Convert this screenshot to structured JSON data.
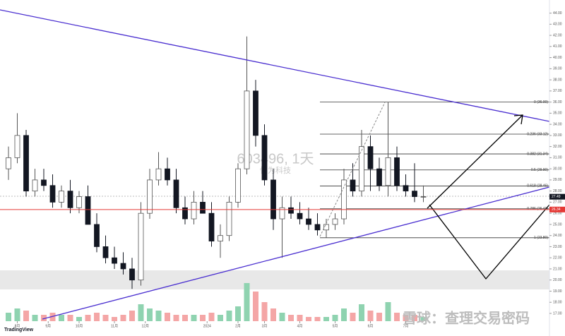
{
  "chart_data": {
    "type": "candlestick",
    "watermark": "603496, 1天",
    "watermark_sub": "恒为科技",
    "brand": "TradingView",
    "credit": "雪球：查理交易密码",
    "up_color": "#555555",
    "down_color": "#131722",
    "volume_up_color": "#8fd3b0",
    "volume_down_color": "#f4a6a6",
    "open": [
      30,
      31,
      33,
      28,
      29,
      28.5,
      27,
      28,
      26.5,
      27.5,
      25,
      23,
      22,
      21.5,
      21,
      20,
      26,
      29,
      30,
      29,
      26.5,
      25.5,
      27,
      26,
      23.5,
      24,
      27,
      30,
      37,
      33,
      29,
      25.5,
      26.5,
      26,
      25.5,
      25,
      24.5,
      25,
      25.5,
      29,
      28,
      32,
      30,
      28.5,
      31,
      28.5,
      28,
      27.5
    ],
    "high": [
      32,
      35,
      33.5,
      30,
      30,
      29.5,
      28.5,
      29,
      28,
      28.5,
      26,
      24,
      23,
      22.5,
      22,
      27,
      30,
      31.5,
      31,
      30,
      27.5,
      28,
      28,
      27,
      25,
      27.5,
      30.5,
      41.9,
      38,
      34,
      30,
      27.5,
      27.5,
      27,
      26.5,
      26,
      25.5,
      26,
      30,
      30.5,
      33.5,
      33,
      31,
      36,
      32,
      29.5,
      30.5,
      28.5
    ],
    "low": [
      29,
      30.5,
      27.5,
      27.5,
      28,
      26.5,
      26.5,
      26,
      26,
      25,
      22.5,
      21.5,
      21,
      20.5,
      19.2,
      19.5,
      25.5,
      28.5,
      28.5,
      26,
      25,
      25,
      26,
      23,
      22,
      23.5,
      26.5,
      29.5,
      32,
      28.5,
      24.5,
      22,
      25.5,
      25,
      24.5,
      24,
      23.8,
      24.5,
      25,
      27.5,
      27.5,
      28,
      28,
      27.5,
      28,
      27.5,
      27,
      27
    ],
    "close": [
      31,
      33,
      28,
      29,
      28.5,
      27,
      28,
      26.5,
      27.5,
      25,
      23,
      22,
      21.5,
      21,
      20,
      26,
      29,
      30,
      29,
      26.5,
      25.5,
      27,
      26,
      23.5,
      24,
      27,
      30,
      37,
      33,
      29,
      25.5,
      26.5,
      26,
      25.5,
      25,
      24.5,
      25,
      25.5,
      29,
      28,
      32,
      30,
      28.5,
      31,
      28.5,
      28,
      27.5,
      27.5
    ],
    "volume": [
      4,
      6,
      5,
      3,
      3,
      4,
      3,
      3,
      2,
      3,
      4,
      3,
      2,
      3,
      5,
      8,
      6,
      5,
      4,
      3,
      3,
      3,
      3,
      4,
      3,
      5,
      7,
      18,
      14,
      9,
      6,
      4,
      3,
      3,
      2,
      2,
      2,
      3,
      6,
      4,
      8,
      5,
      4,
      9,
      4,
      3,
      3,
      2
    ],
    "vlim": [
      0,
      20
    ],
    "ylim": [
      16.3,
      44.1
    ],
    "yticks": [
      {
        "value": 17,
        "label": "17.00"
      },
      {
        "value": 18,
        "label": "18.00"
      },
      {
        "value": 19,
        "label": "19.00"
      },
      {
        "value": 20,
        "label": "20.00"
      },
      {
        "value": 21,
        "label": "21.00"
      },
      {
        "value": 22,
        "label": "22.00"
      },
      {
        "value": 23,
        "label": "23.00"
      },
      {
        "value": 24,
        "label": "24.00"
      },
      {
        "value": 25,
        "label": "25.00"
      },
      {
        "value": 26,
        "label": "26.00"
      },
      {
        "value": 27,
        "label": "27.00"
      },
      {
        "value": 28,
        "label": "28.00"
      },
      {
        "value": 29,
        "label": "29.00"
      },
      {
        "value": 30,
        "label": "30.00"
      },
      {
        "value": 31,
        "label": "31.00"
      },
      {
        "value": 32,
        "label": "32.00"
      },
      {
        "value": 33,
        "label": "33.00"
      },
      {
        "value": 34,
        "label": "34.00"
      },
      {
        "value": 35,
        "label": "35.00"
      },
      {
        "value": 36,
        "label": "36.00"
      },
      {
        "value": 37,
        "label": "37.00"
      },
      {
        "value": 38,
        "label": "38.00"
      },
      {
        "value": 39,
        "label": "39.00"
      },
      {
        "value": 40,
        "label": "40.00"
      },
      {
        "value": 41,
        "label": "41.00"
      },
      {
        "value": 42,
        "label": "42.00"
      },
      {
        "value": 43,
        "label": "43.00"
      },
      {
        "value": 44,
        "label": "44.00"
      }
    ],
    "xticks": [
      {
        "value": 1,
        "label": "8月"
      },
      {
        "value": 4.5,
        "label": "9月"
      },
      {
        "value": 8,
        "label": "10月"
      },
      {
        "value": 12,
        "label": "11月"
      },
      {
        "value": 15.5,
        "label": "12月"
      },
      {
        "value": 22.5,
        "label": "2024"
      },
      {
        "value": 26,
        "label": "2月"
      },
      {
        "value": 29,
        "label": "3月"
      },
      {
        "value": 33,
        "label": "4月"
      },
      {
        "value": 37,
        "label": "5月"
      },
      {
        "value": 41,
        "label": "6月"
      },
      {
        "value": 45,
        "label": "7月"
      }
    ],
    "fib_levels": [
      {
        "value": 36,
        "label": "0 (36.00)"
      },
      {
        "value": 33.12,
        "label": "0.236 (33.12)"
      },
      {
        "value": 31.34,
        "label": "0.382 (31.34)"
      },
      {
        "value": 29.9,
        "label": "0.5 (29.90)"
      },
      {
        "value": 28.46,
        "label": "0.618 (28.46)"
      },
      {
        "value": 26.41,
        "label": "0.786 (26.41)"
      },
      {
        "value": 23.8,
        "label": "1 (23.80)"
      }
    ],
    "price_markers": [
      {
        "price": 27.49,
        "color": "#131722"
      },
      {
        "price": 26.34,
        "color": "#e53935"
      }
    ]
  }
}
